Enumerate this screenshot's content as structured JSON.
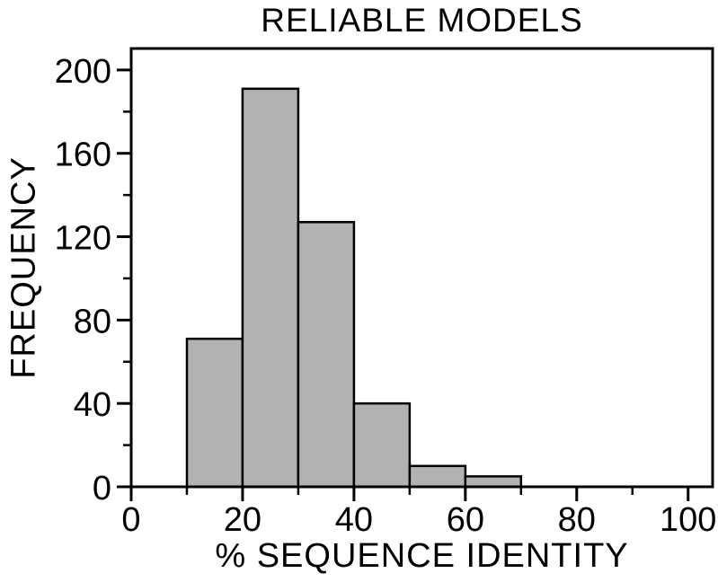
{
  "chart_data": {
    "type": "bar",
    "subtype": "histogram",
    "title": "RELIABLE MODELS",
    "xlabel": "% SEQUENCE IDENTITY",
    "ylabel": "FREQUENCY",
    "bin_edges": [
      10,
      20,
      30,
      40,
      50,
      60,
      70
    ],
    "categories": [
      "10-20",
      "20-30",
      "30-40",
      "40-50",
      "50-60",
      "60-70"
    ],
    "values": [
      71,
      191,
      127,
      40,
      10,
      5
    ],
    "xlim": [
      0,
      104.4
    ],
    "ylim": [
      0,
      210.3
    ],
    "x_major_ticks": [
      0,
      20,
      40,
      60,
      80,
      100
    ],
    "x_minor_ticks": [
      10,
      30,
      50,
      70,
      90
    ],
    "y_major_ticks": [
      0,
      40,
      80,
      120,
      160,
      200
    ],
    "y_minor_ticks": [
      20,
      60,
      100,
      140,
      180
    ],
    "grid": false,
    "legend": null,
    "bar_fill": "#b2b2b2",
    "bar_stroke": "#000000",
    "axis_color": "#000000",
    "background": "#ffffff"
  }
}
